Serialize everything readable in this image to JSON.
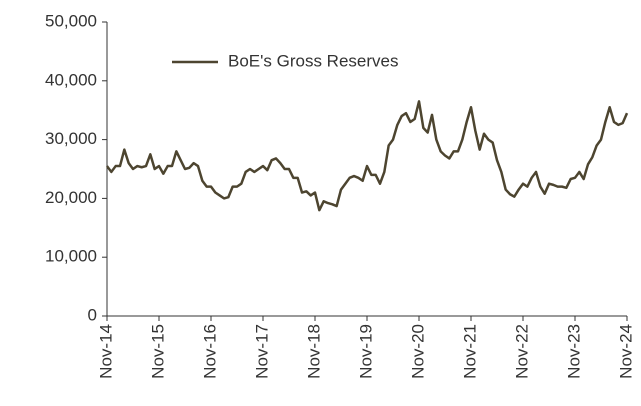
{
  "chart_data": {
    "type": "line",
    "categories": [
      "Nov-14",
      null,
      null,
      null,
      null,
      null,
      null,
      null,
      null,
      null,
      null,
      null,
      "Nov-15",
      null,
      null,
      null,
      null,
      null,
      null,
      null,
      null,
      null,
      null,
      null,
      "Nov-16",
      null,
      null,
      null,
      null,
      null,
      null,
      null,
      null,
      null,
      null,
      null,
      "Nov-17",
      null,
      null,
      null,
      null,
      null,
      null,
      null,
      null,
      null,
      null,
      null,
      "Nov-18",
      null,
      null,
      null,
      null,
      null,
      null,
      null,
      null,
      null,
      null,
      null,
      "Nov-19",
      null,
      null,
      null,
      null,
      null,
      null,
      null,
      null,
      null,
      null,
      null,
      "Nov-20",
      null,
      null,
      null,
      null,
      null,
      null,
      null,
      null,
      null,
      null,
      null,
      "Nov-21",
      null,
      null,
      null,
      null,
      null,
      null,
      null,
      null,
      null,
      null,
      null,
      "Nov-22",
      null,
      null,
      null,
      null,
      null,
      null,
      null,
      null,
      null,
      null,
      null,
      "Nov-23",
      null,
      null,
      null,
      null,
      null,
      null,
      null,
      null,
      null,
      null,
      null,
      "Nov-24"
    ],
    "series": [
      {
        "name": "BoE's Gross Reserves",
        "color": "#4d4530",
        "values": [
          25500,
          24500,
          25500,
          25500,
          28300,
          26000,
          25000,
          25500,
          25300,
          25500,
          27500,
          25000,
          25500,
          24200,
          25500,
          25500,
          28000,
          26500,
          25000,
          25200,
          26000,
          25500,
          23000,
          22000,
          22000,
          21000,
          20500,
          20000,
          20200,
          22000,
          22000,
          22500,
          24500,
          25000,
          24500,
          25000,
          25500,
          24800,
          26500,
          26800,
          26000,
          25000,
          25000,
          23500,
          23500,
          21000,
          21200,
          20500,
          21000,
          18000,
          19500,
          19200,
          19000,
          18700,
          21500,
          22500,
          23500,
          23800,
          23500,
          23000,
          25500,
          24000,
          24000,
          22500,
          24500,
          29000,
          30000,
          32500,
          34000,
          34500,
          33000,
          33500,
          36500,
          32000,
          31200,
          34200,
          30000,
          28000,
          27300,
          26800,
          28000,
          28000,
          30000,
          33000,
          35500,
          31500,
          28300,
          31000,
          30000,
          29500,
          26500,
          24500,
          21500,
          20700,
          20300,
          21500,
          22500,
          22000,
          23500,
          24500,
          22000,
          20800,
          22500,
          22300,
          22000,
          22000,
          21800,
          23300,
          23500,
          24500,
          23300,
          25800,
          27000,
          29000,
          30000,
          33000,
          35500,
          33000,
          32500,
          32800,
          34500
        ]
      }
    ],
    "ylim": [
      0,
      50000
    ],
    "yticks": [
      0,
      {
        "value": 10000,
        "label": "10,000"
      },
      {
        "value": 20000,
        "label": "20,000"
      },
      {
        "value": 30000,
        "label": "30,000"
      },
      {
        "value": 40000,
        "label": "40,000"
      },
      {
        "value": 50000,
        "label": "50,000"
      }
    ],
    "legend": "top-left",
    "grid": false
  }
}
